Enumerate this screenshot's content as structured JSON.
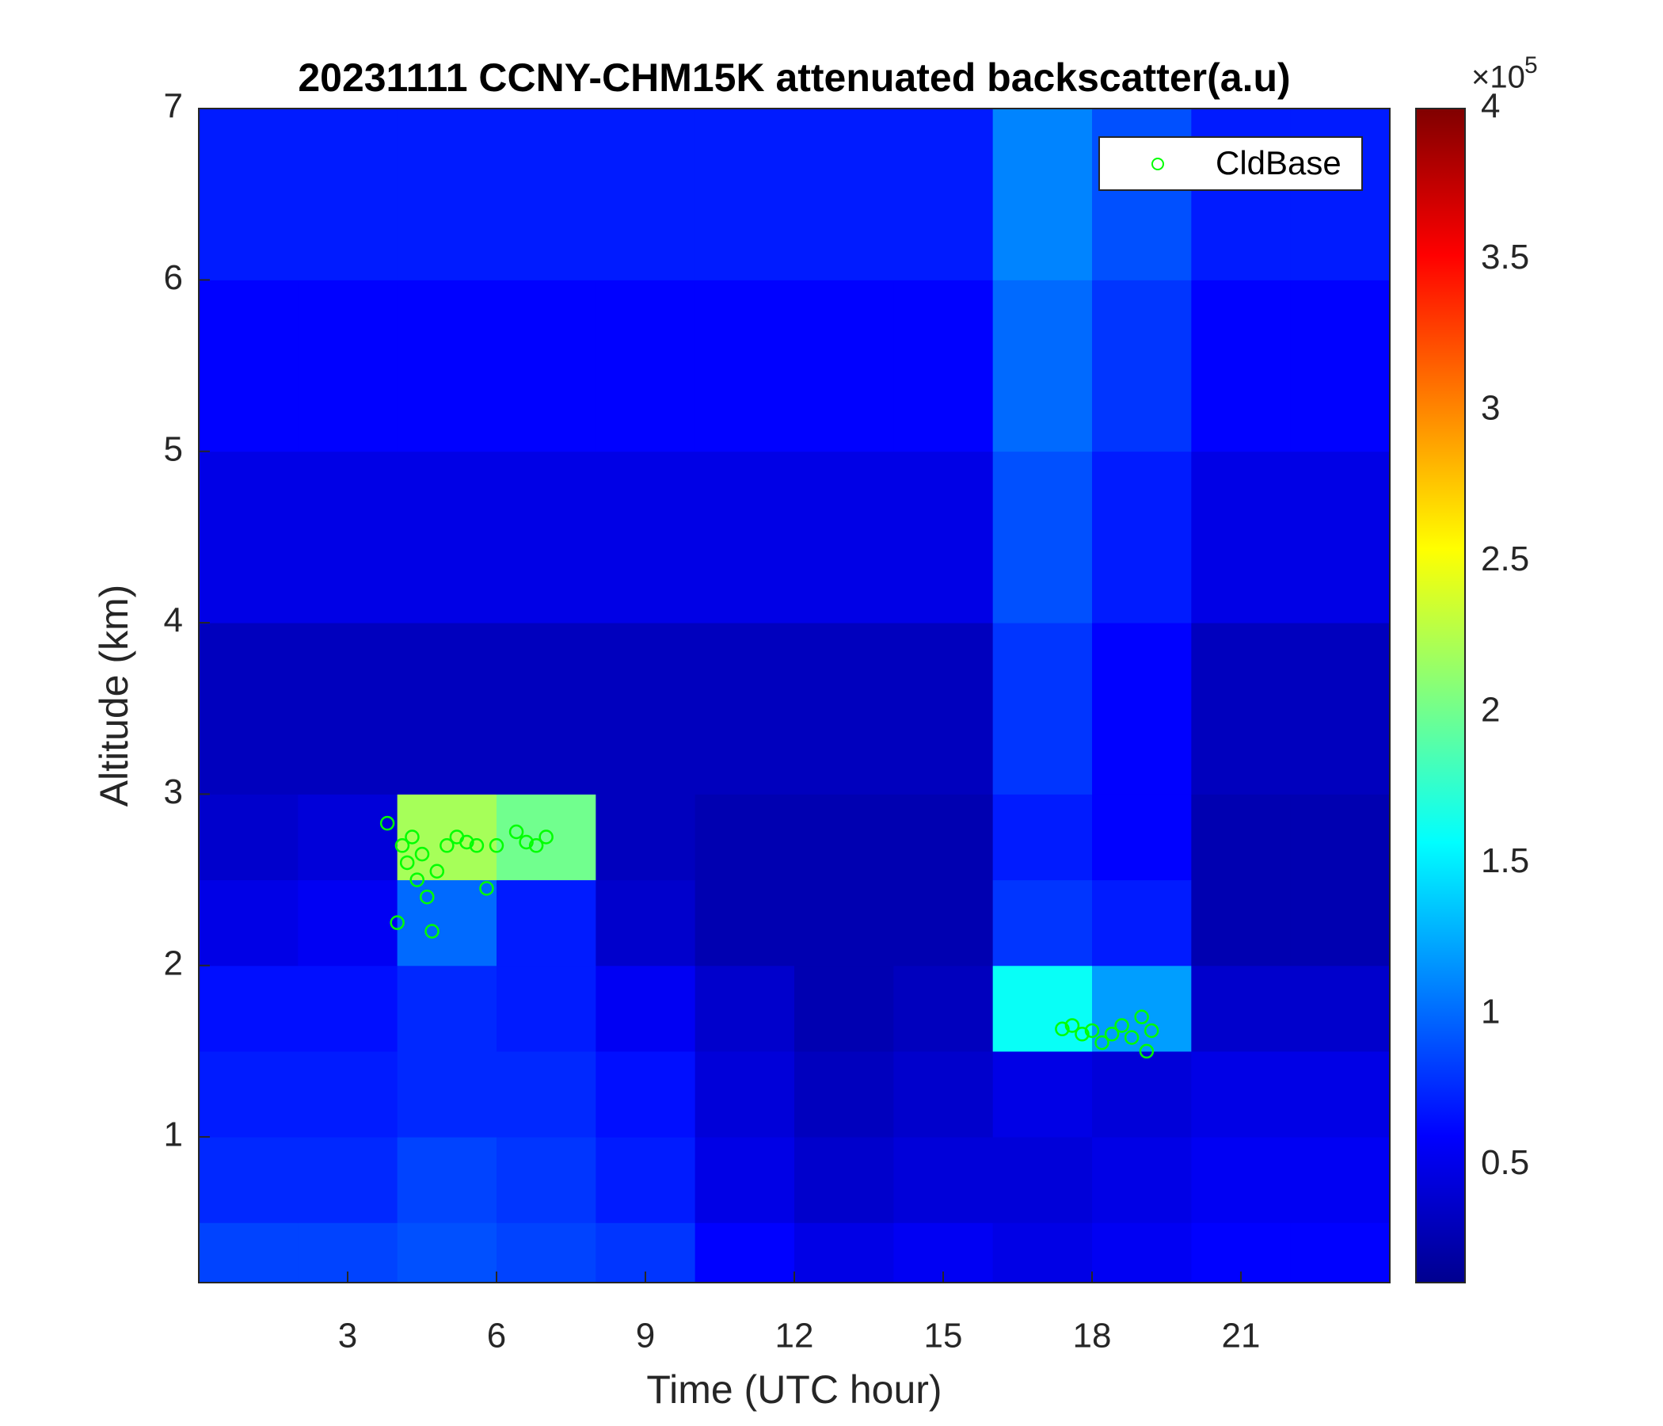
{
  "chart_data": {
    "type": "heatmap",
    "title": "20231111 CCNY-CHM15K attenuated backscatter(a.u)",
    "x_label": "Time (UTC hour)",
    "y_label": "Altitude (km)",
    "xlim": [
      0,
      24
    ],
    "ylim": [
      0.15,
      7
    ],
    "xticks": [
      3,
      6,
      9,
      12,
      15,
      18,
      21
    ],
    "yticks": [
      1,
      2,
      3,
      4,
      5,
      6,
      7
    ],
    "x_edges": [
      0,
      2,
      4,
      6,
      8,
      10,
      12,
      14,
      16,
      18,
      20,
      22,
      24
    ],
    "y_edges": [
      0.15,
      0.5,
      1,
      1.5,
      2,
      2.5,
      3,
      4,
      5,
      6,
      7
    ],
    "z": [
      [
        0.85,
        0.85,
        0.9,
        0.85,
        0.8,
        0.6,
        0.5,
        0.55,
        0.5,
        0.55,
        0.6,
        0.6
      ],
      [
        0.75,
        0.75,
        0.85,
        0.8,
        0.7,
        0.5,
        0.4,
        0.45,
        0.45,
        0.5,
        0.55,
        0.55
      ],
      [
        0.7,
        0.7,
        0.75,
        0.75,
        0.65,
        0.45,
        0.35,
        0.4,
        0.5,
        0.45,
        0.5,
        0.5
      ],
      [
        0.65,
        0.65,
        0.75,
        0.7,
        0.55,
        0.4,
        0.3,
        0.35,
        1.6,
        1.2,
        0.4,
        0.4
      ],
      [
        0.5,
        0.55,
        1.0,
        0.7,
        0.4,
        0.3,
        0.3,
        0.3,
        0.8,
        0.7,
        0.3,
        0.3
      ],
      [
        0.4,
        0.45,
        2.2,
        2.0,
        0.35,
        0.3,
        0.3,
        0.3,
        0.7,
        0.6,
        0.3,
        0.3
      ],
      [
        0.35,
        0.35,
        0.35,
        0.35,
        0.35,
        0.35,
        0.35,
        0.35,
        0.8,
        0.6,
        0.35,
        0.35
      ],
      [
        0.5,
        0.5,
        0.5,
        0.5,
        0.5,
        0.5,
        0.5,
        0.5,
        0.9,
        0.7,
        0.5,
        0.5
      ],
      [
        0.6,
        0.6,
        0.6,
        0.6,
        0.6,
        0.6,
        0.6,
        0.6,
        1.0,
        0.8,
        0.6,
        0.6
      ],
      [
        0.7,
        0.7,
        0.7,
        0.7,
        0.7,
        0.7,
        0.7,
        0.7,
        1.1,
        0.9,
        0.7,
        0.7
      ]
    ],
    "clim": [
      0.11,
      4
    ],
    "colorbar_ticks": [
      0.5,
      1,
      1.5,
      2,
      2.5,
      3,
      3.5,
      4
    ],
    "colorbar_multiplier": "×10",
    "colorbar_exponent": "5",
    "colormap": "jet",
    "legend": "upper right",
    "series": [
      {
        "name": "CldBase",
        "color": "#00ff00",
        "x": [
          3.8,
          4.0,
          4.1,
          4.2,
          4.3,
          4.4,
          4.5,
          4.6,
          4.7,
          4.8,
          5.0,
          5.2,
          5.4,
          5.6,
          5.8,
          6.0,
          6.4,
          6.6,
          6.8,
          7.0,
          17.4,
          17.6,
          17.8,
          18.0,
          18.2,
          18.4,
          18.6,
          18.8,
          19.0,
          19.1,
          19.2
        ],
        "values": [
          2.83,
          2.25,
          2.7,
          2.6,
          2.75,
          2.5,
          2.65,
          2.4,
          2.2,
          2.55,
          2.7,
          2.75,
          2.72,
          2.7,
          2.45,
          2.7,
          2.78,
          2.72,
          2.7,
          2.75,
          1.63,
          1.65,
          1.6,
          1.62,
          1.55,
          1.6,
          1.65,
          1.58,
          1.7,
          1.5,
          1.62
        ]
      }
    ]
  }
}
